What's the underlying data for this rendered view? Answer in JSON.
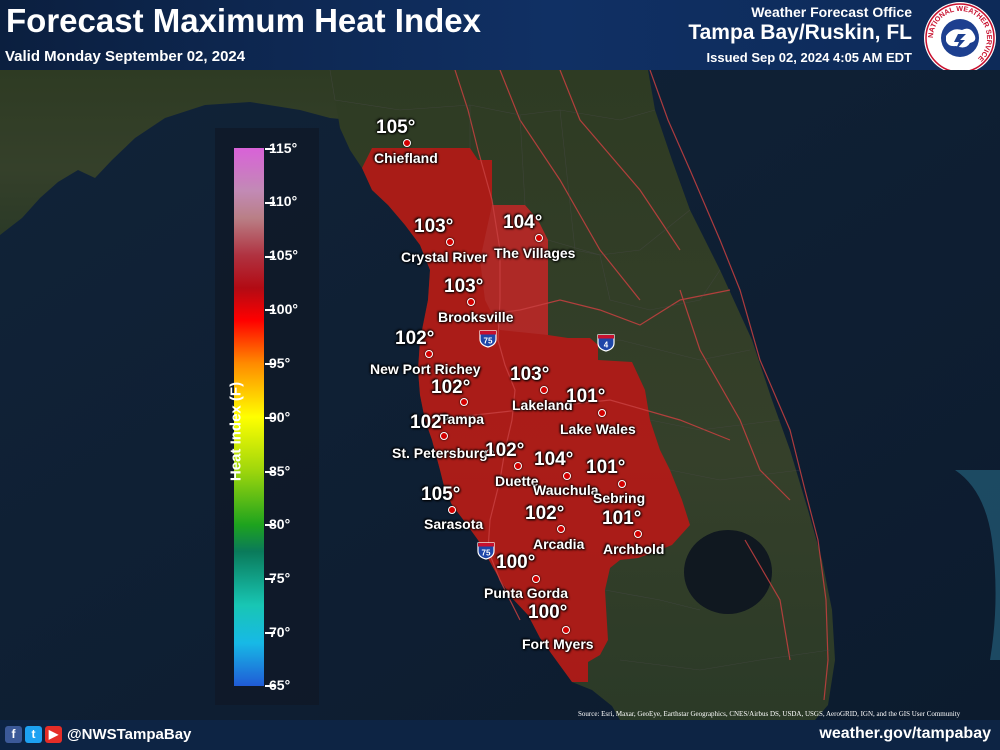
{
  "header": {
    "title": "Forecast Maximum Heat Index",
    "subtitle": "Valid Monday September 02, 2024",
    "office_label": "Weather Forecast Office",
    "office_name": "Tampa Bay/Ruskin, FL",
    "issued": "Issued Sep 02, 2024 4:05 AM EDT",
    "seal_text": "NATIONAL WEATHER SERVICE"
  },
  "legend": {
    "title": "Heat Index (F)",
    "ticks": [
      "115°",
      "110°",
      "105°",
      "100°",
      "95°",
      "90°",
      "85°",
      "80°",
      "75°",
      "70°",
      "65°"
    ],
    "colors": [
      "#d962d8",
      "#b97f86",
      "#b20b14",
      "#ff0000",
      "#ff8a00",
      "#ffff00",
      "#9ed60c",
      "#1ea31e",
      "#0a7a5a",
      "#18c6b4",
      "#205bd6"
    ]
  },
  "highways": [
    "75",
    "75",
    "4"
  ],
  "points": [
    {
      "value": "105°",
      "city": "Chiefland"
    },
    {
      "value": "103°",
      "city": "Crystal River"
    },
    {
      "value": "104°",
      "city": "The Villages"
    },
    {
      "value": "103°",
      "city": "Brooksville"
    },
    {
      "value": "102°",
      "city": "New Port Richey"
    },
    {
      "value": "102°",
      "city": ""
    },
    {
      "value": "103°",
      "city": "Lakeland"
    },
    {
      "value": "101°",
      "city": "Lake Wales"
    },
    {
      "value": "102°",
      "city": "Tampa"
    },
    {
      "value": "",
      "city": "St. Petersburg"
    },
    {
      "value": "102°",
      "city": "Duette"
    },
    {
      "value": "104°",
      "city": "Wauchula"
    },
    {
      "value": "101°",
      "city": "Sebring"
    },
    {
      "value": "105°",
      "city": "Sarasota"
    },
    {
      "value": "102°",
      "city": "Arcadia"
    },
    {
      "value": "101°",
      "city": "Archbold"
    },
    {
      "value": "100°",
      "city": "Punta Gorda"
    },
    {
      "value": "100°",
      "city": "Fort Myers"
    }
  ],
  "source": "Source: Esri, Maxar, GeoEye, Earthstar Geographics, CNES/Airbus DS, USDA, USGS, AeroGRID, IGN, and the GIS User Community",
  "footer": {
    "social": [
      "f",
      "t",
      "▶"
    ],
    "social_colors": [
      "#3b5998",
      "#1da1f2",
      "#e52d27"
    ],
    "handle": "@NWSTampaBay",
    "website": "weather.gov/tampabay"
  }
}
